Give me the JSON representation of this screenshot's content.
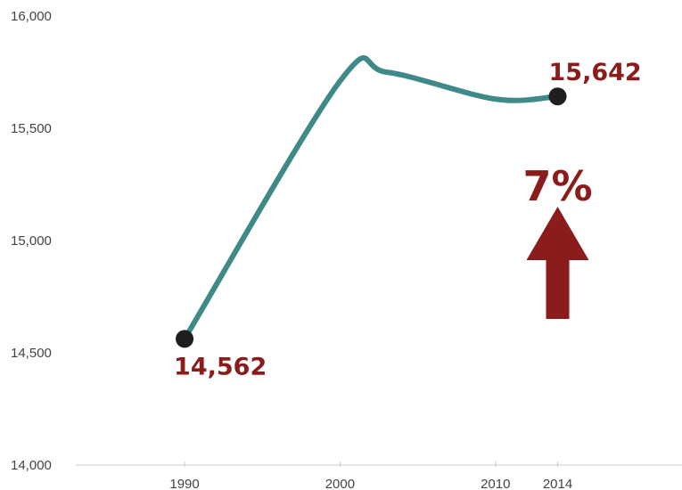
{
  "chart_data": {
    "type": "line",
    "x": [
      1990,
      2000,
      2003,
      2010,
      2014
    ],
    "y": [
      14562,
      15710,
      15750,
      15630,
      15642
    ],
    "xticks": [
      "1990",
      "2000",
      "2010",
      "2014"
    ],
    "yticks": [
      "14,000",
      "14,500",
      "15,000",
      "15,500",
      "16,000"
    ],
    "xlim": [
      1983,
      2022
    ],
    "ylim": [
      14000,
      16000
    ],
    "endpoints": [
      {
        "x": 1990,
        "y": 14562,
        "label": "14,562"
      },
      {
        "x": 2014,
        "y": 15642,
        "label": "15,642"
      }
    ],
    "change_annotation": {
      "text": "7%",
      "direction": "up"
    },
    "grid": false,
    "smooth": true
  },
  "colors": {
    "line": "#3e8a88",
    "point": "#1e1e1e",
    "label": "#8b1c1c",
    "arrow": "#8b1c1c",
    "axis": "#cccccc",
    "tick_text": "#444444"
  }
}
